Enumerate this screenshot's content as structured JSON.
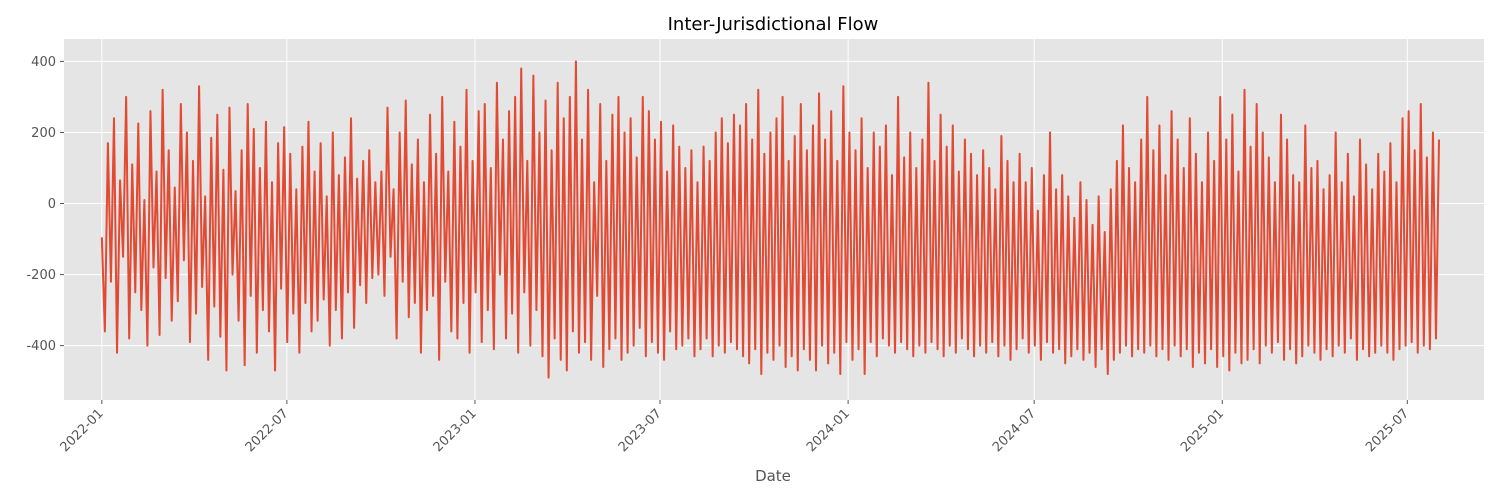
{
  "chart_data": {
    "type": "line",
    "title": "Inter-Jurisdictional Flow",
    "xlabel": "Date",
    "ylabel": "",
    "x_range": [
      "2021-11-25",
      "2025-09-14"
    ],
    "ylim": [
      -553,
      463
    ],
    "x_ticks": [
      "2022-01",
      "2022-07",
      "2023-01",
      "2023-07",
      "2024-01",
      "2024-07",
      "2025-01",
      "2025-07"
    ],
    "y_ticks": [
      400,
      200,
      0,
      -200,
      -400
    ],
    "grid": true,
    "legend": "none",
    "series": [
      {
        "color": "#e24a33",
        "sampling": "every 3 days",
        "x_start": "2022-01-01",
        "x_end": "2025-08-01",
        "values": [
          -95,
          -360,
          170,
          -220,
          240,
          -420,
          65,
          -150,
          300,
          -380,
          110,
          -250,
          225,
          -300,
          10,
          -400,
          260,
          -180,
          90,
          -370,
          320,
          -210,
          150,
          -330,
          45,
          -275,
          280,
          -160,
          200,
          -390,
          120,
          -310,
          330,
          -235,
          20,
          -440,
          185,
          -290,
          250,
          -375,
          95,
          -470,
          270,
          -200,
          35,
          -330,
          150,
          -455,
          280,
          -260,
          210,
          -420,
          100,
          -300,
          230,
          -360,
          60,
          -470,
          170,
          -240,
          215,
          -390,
          140,
          -310,
          40,
          -420,
          160,
          -280,
          230,
          -360,
          90,
          -330,
          170,
          -270,
          20,
          -400,
          200,
          -300,
          80,
          -380,
          130,
          -250,
          240,
          -350,
          70,
          -230,
          120,
          -280,
          150,
          -210,
          60,
          -200,
          90,
          -260,
          270,
          -150,
          40,
          -380,
          200,
          -220,
          290,
          -320,
          110,
          -280,
          180,
          -420,
          60,
          -300,
          250,
          -260,
          140,
          -440,
          300,
          -220,
          90,
          -360,
          230,
          -380,
          160,
          -280,
          320,
          -420,
          120,
          -250,
          260,
          -390,
          280,
          -300,
          100,
          -410,
          340,
          -200,
          180,
          -380,
          260,
          -310,
          300,
          -420,
          380,
          -250,
          120,
          -400,
          360,
          -300,
          200,
          -430,
          290,
          -490,
          150,
          -380,
          340,
          -440,
          240,
          -470,
          300,
          -360,
          400,
          -420,
          180,
          -390,
          320,
          -440,
          60,
          -260,
          280,
          -460,
          120,
          -410,
          250,
          -380,
          300,
          -440,
          200,
          -420,
          240,
          -400,
          130,
          -350,
          300,
          -430,
          260,
          -390,
          180,
          -420,
          230,
          -440,
          90,
          -360,
          220,
          -410,
          160,
          -400,
          100,
          -380,
          150,
          -430,
          60,
          -410,
          160,
          -380,
          120,
          -430,
          200,
          -400,
          240,
          -420,
          170,
          -390,
          250,
          -410,
          220,
          -430,
          280,
          -450,
          180,
          -410,
          320,
          -480,
          140,
          -420,
          200,
          -440,
          240,
          -400,
          300,
          -460,
          120,
          -430,
          190,
          -470,
          280,
          -410,
          150,
          -440,
          220,
          -470,
          310,
          -400,
          180,
          -450,
          260,
          -420,
          120,
          -480,
          330,
          -390,
          200,
          -440,
          150,
          -410,
          240,
          -480,
          100,
          -390,
          200,
          -430,
          160,
          -380,
          220,
          -400,
          80,
          -420,
          300,
          -390,
          130,
          -410,
          200,
          -430,
          100,
          -400,
          180,
          -420,
          340,
          -390,
          120,
          -410,
          250,
          -430,
          160,
          -400,
          220,
          -420,
          90,
          -380,
          180,
          -410,
          140,
          -430,
          80,
          -400,
          150,
          -420,
          100,
          -390,
          40,
          -430,
          190,
          -400,
          120,
          -440,
          60,
          -410,
          140,
          -380,
          60,
          -420,
          100,
          -400,
          -20,
          -440,
          80,
          -390,
          200,
          -420,
          40,
          -410,
          80,
          -450,
          20,
          -430,
          -40,
          -410,
          60,
          -440,
          10,
          -420,
          -60,
          -460,
          20,
          -410,
          -80,
          -480,
          40,
          -440,
          120,
          -420,
          220,
          -400,
          100,
          -430,
          60,
          -410,
          180,
          -420,
          300,
          -400,
          150,
          -430,
          220,
          -410,
          80,
          -440,
          260,
          -400,
          180,
          -430,
          100,
          -410,
          240,
          -460,
          140,
          -420,
          60,
          -450,
          200,
          -410,
          120,
          -460,
          300,
          -430,
          180,
          -470,
          250,
          -420,
          90,
          -450,
          320,
          -440,
          160,
          -410,
          280,
          -450,
          200,
          -400,
          130,
          -420,
          60,
          -390,
          250,
          -440,
          180,
          -410,
          80,
          -450,
          60,
          -430,
          220,
          -400,
          100,
          -420,
          120,
          -440,
          40,
          -410,
          80,
          -430,
          200,
          -400,
          60,
          -420,
          140,
          -380,
          20,
          -440,
          180,
          -410,
          110,
          -430,
          40,
          -420,
          140,
          -400,
          90,
          -420,
          170,
          -440,
          60,
          -410,
          240,
          -400,
          260,
          -390,
          150,
          -420,
          280,
          -400,
          130,
          -410,
          200,
          -380,
          180
        ]
      }
    ]
  }
}
